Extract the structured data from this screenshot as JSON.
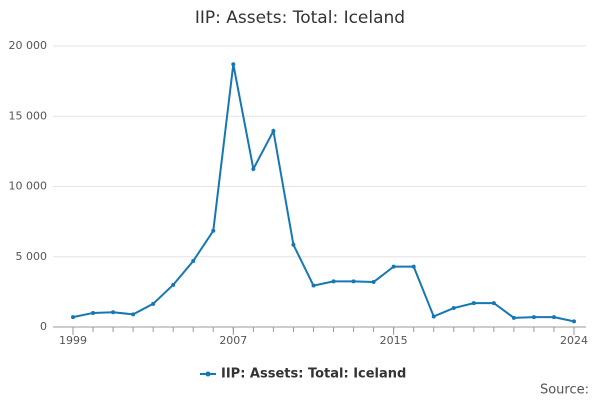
{
  "chart_data": {
    "type": "line",
    "title": "IIP: Assets: Total: Iceland",
    "x": [
      1999,
      2000,
      2001,
      2002,
      2003,
      2004,
      2005,
      2006,
      2007,
      2008,
      2009,
      2010,
      2011,
      2012,
      2013,
      2014,
      2015,
      2016,
      2017,
      2018,
      2019,
      2020,
      2021,
      2022,
      2023,
      2024
    ],
    "series": [
      {
        "name": "IIP: Assets: Total: Iceland",
        "color": "#1577b3",
        "values": [
          700,
          1000,
          1050,
          900,
          1650,
          3000,
          4700,
          6850,
          18700,
          11250,
          13950,
          5850,
          2950,
          3250,
          3250,
          3200,
          4300,
          4300,
          750,
          1350,
          1700,
          1700,
          650,
          700,
          700,
          400
        ]
      }
    ],
    "xlim": [
      1999,
      2024
    ],
    "xticks": [
      1999,
      2007,
      2015,
      2024
    ],
    "ylim": [
      0,
      20000
    ],
    "yticks": [
      0,
      {
        "value": 5000,
        "label": "5 000"
      },
      {
        "value": 10000,
        "label": "10 000"
      },
      {
        "value": 15000,
        "label": "15 000"
      },
      {
        "value": 20000,
        "label": "20 000"
      }
    ],
    "grid": true,
    "legend": "bottom",
    "source": "Source:"
  }
}
